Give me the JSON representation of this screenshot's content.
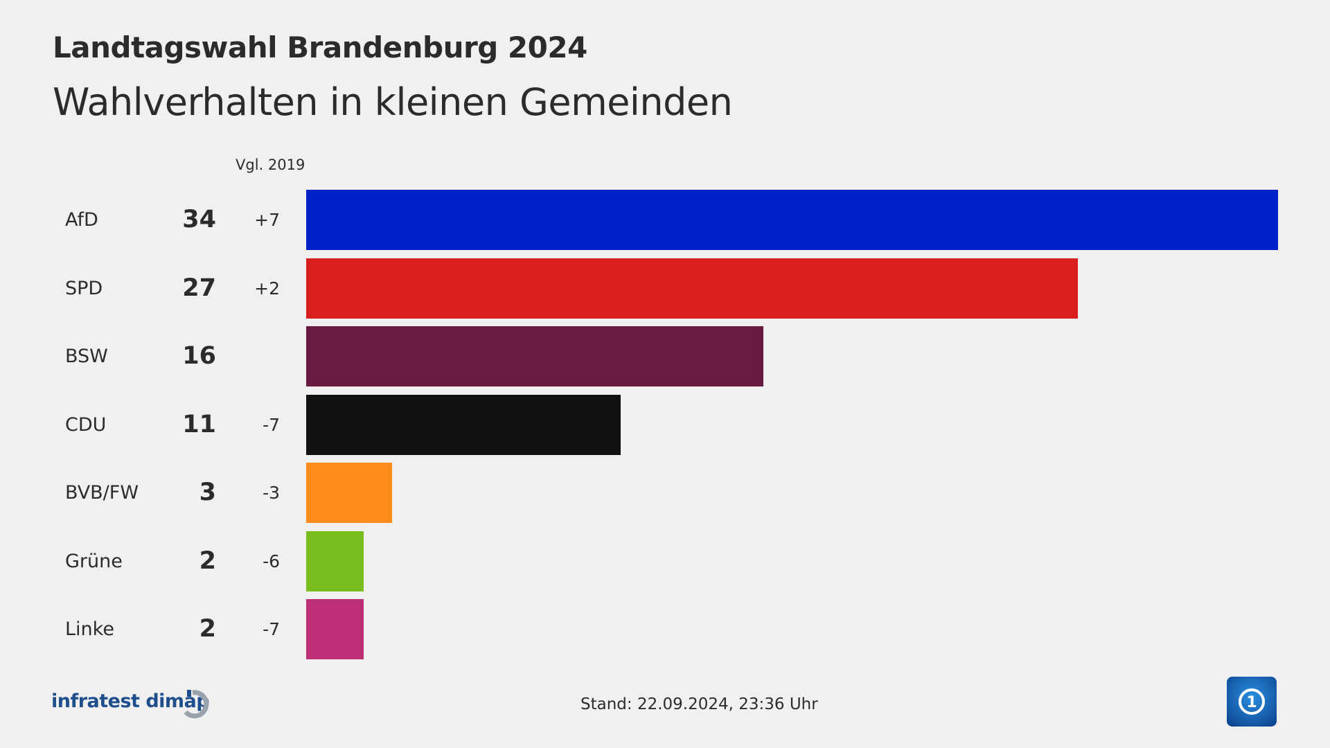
{
  "chart_data": {
    "type": "bar",
    "orientation": "horizontal",
    "title": "Landtagswahl Brandenburg 2024",
    "subtitle": "Wahlverhalten in kleinen Gemeinden",
    "change_header": "Vgl. 2019",
    "categories": [
      "AfD",
      "SPD",
      "BSW",
      "CDU",
      "BVB/FW",
      "Grüne",
      "Linke"
    ],
    "values": [
      34,
      27,
      16,
      11,
      3,
      2,
      2
    ],
    "changes": [
      "+7",
      "+2",
      "",
      "-7",
      "-3",
      "-6",
      "-7"
    ],
    "colors": [
      "#0021c8",
      "#d91e1e",
      "#681a40",
      "#121212",
      "#ff8c1a",
      "#78be1e",
      "#be3075"
    ],
    "xlim": [
      0,
      34
    ],
    "grid": false
  },
  "footer": {
    "source": "infratest dimap",
    "stand": "Stand:  22.09.2024, 23:36 Uhr"
  }
}
